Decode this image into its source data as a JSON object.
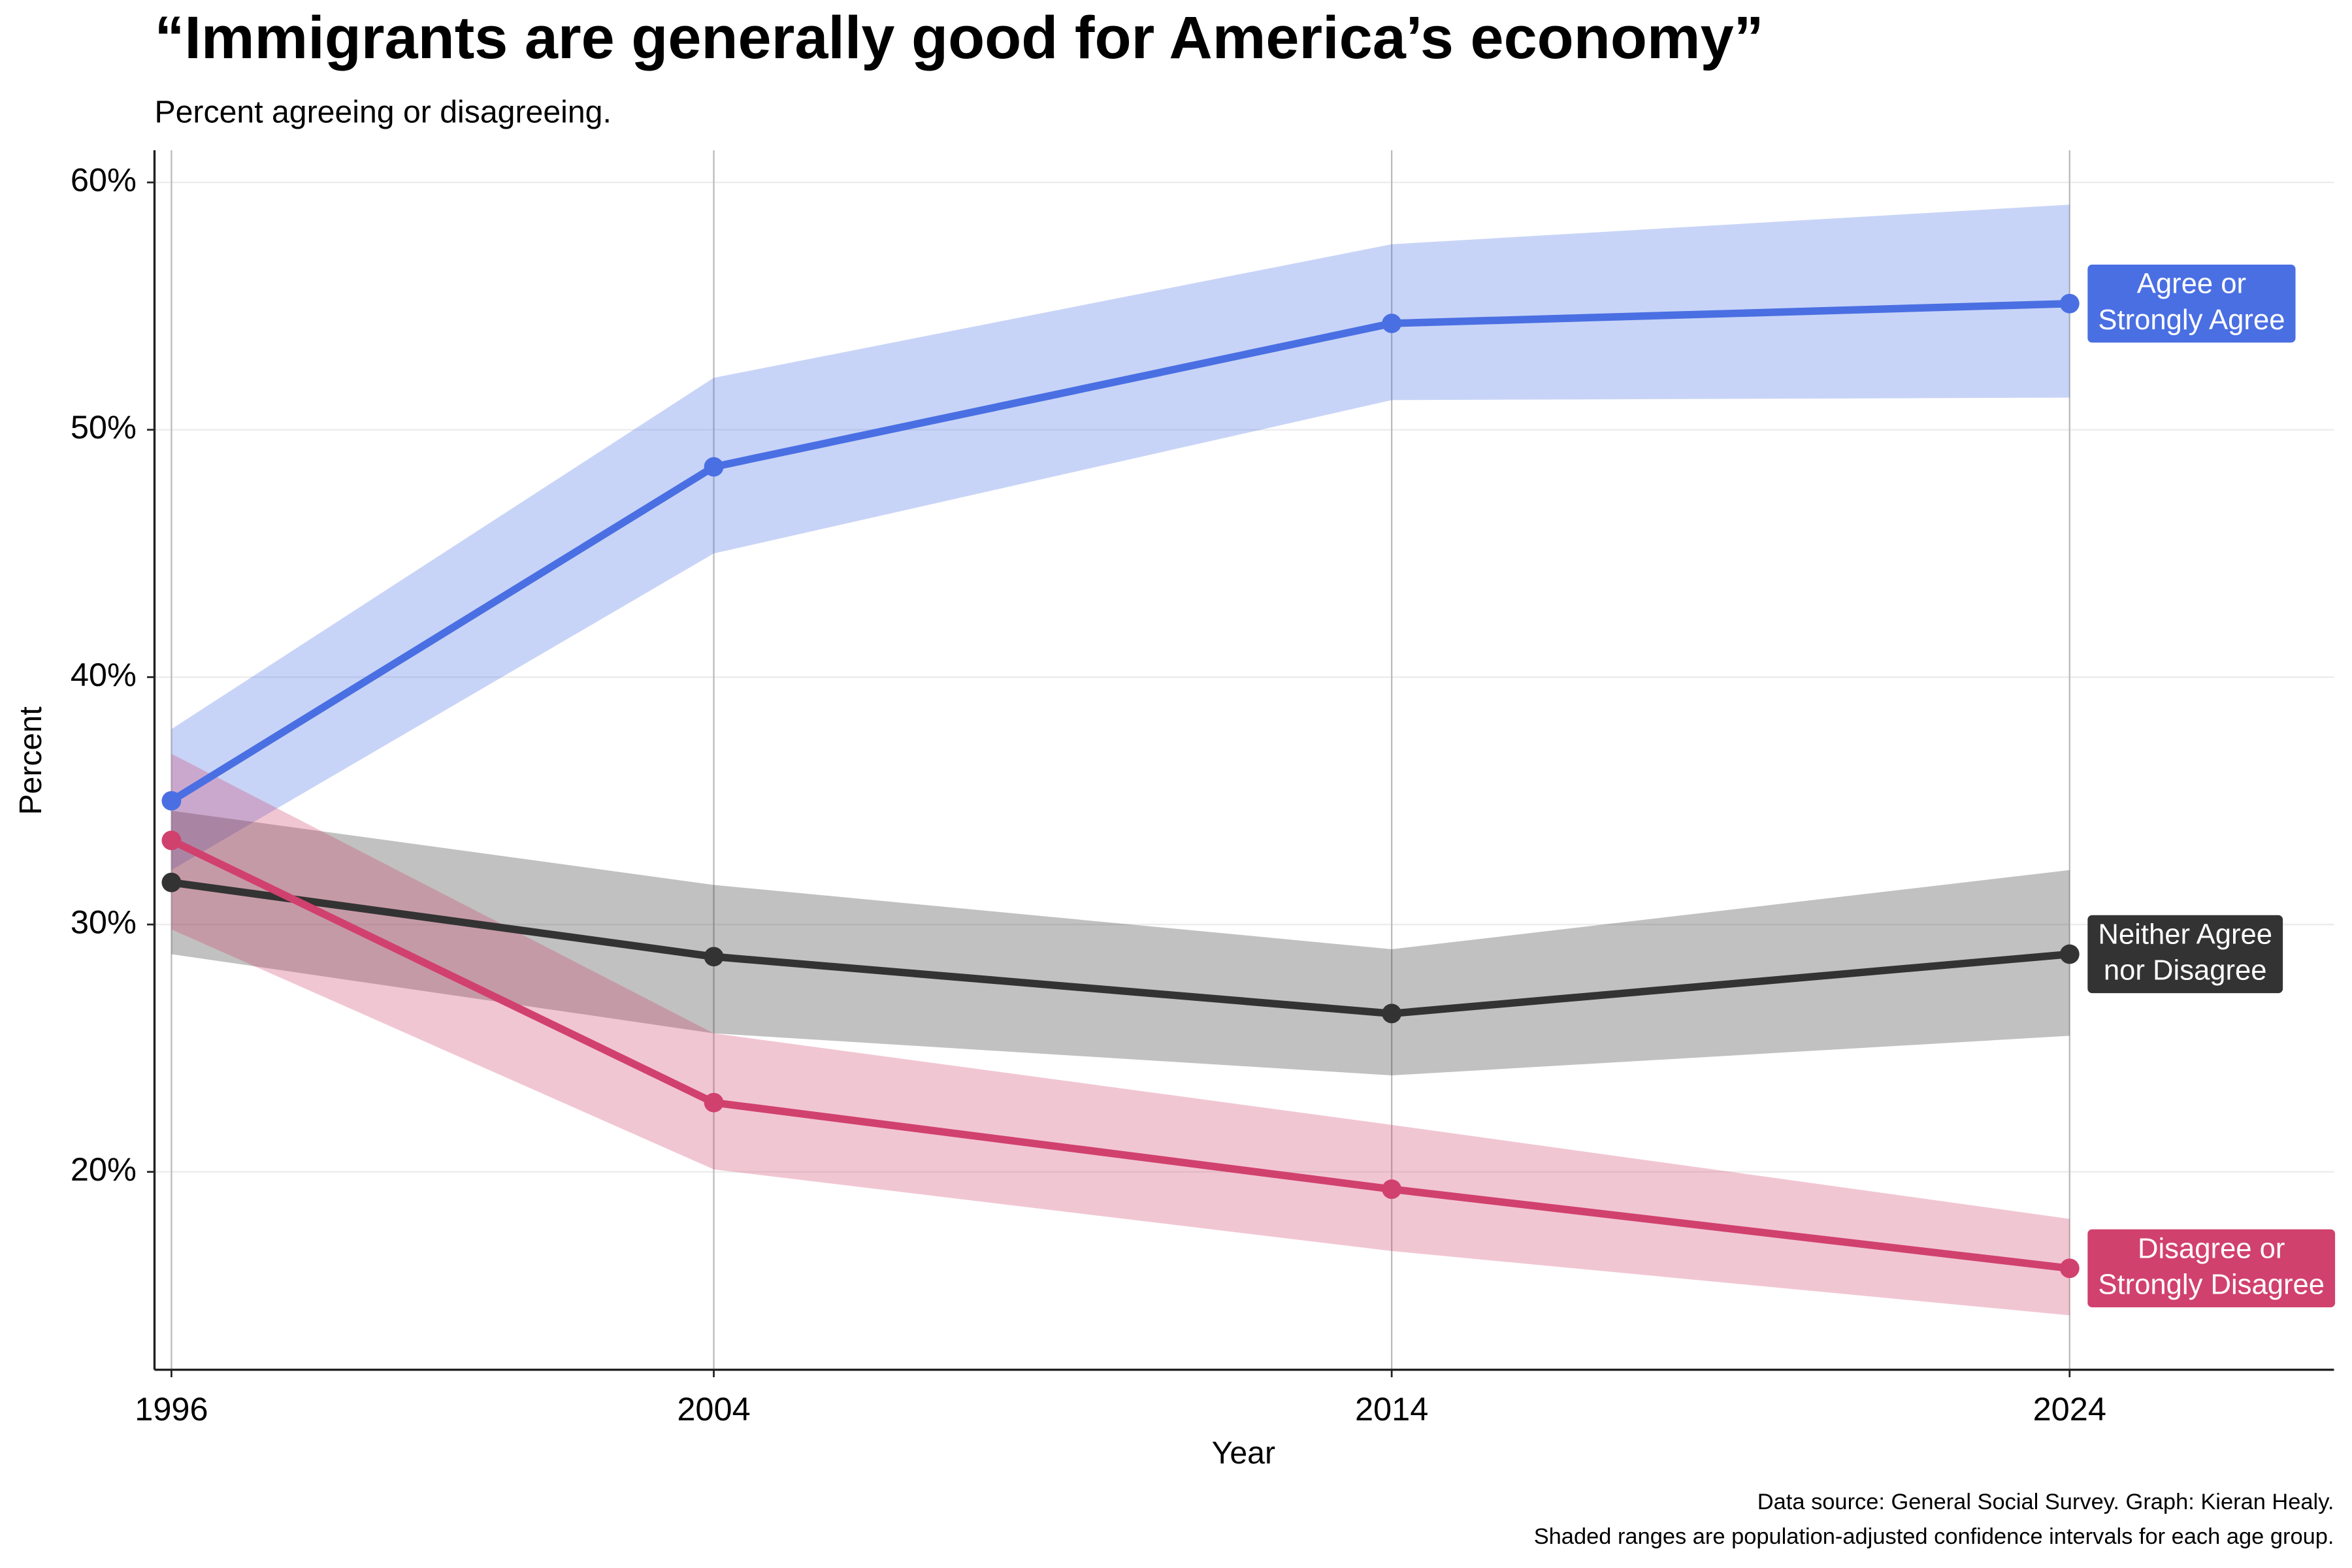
{
  "chart_data": {
    "type": "line",
    "title": "“Immigrants are generally good for America’s economy”",
    "subtitle": "Percent agreeing or disagreeing.",
    "x_label": "Year",
    "y_label": "Percent",
    "caption": [
      "Data source: General Social Survey. Graph: Kieran Healy.",
      "Shaded ranges are population-adjusted confidence intervals for each age group."
    ],
    "x": [
      1996,
      2004,
      2014,
      2024
    ],
    "xlim": [
      1995.75,
      2027.9
    ],
    "xticks": [
      1996,
      2004,
      2014,
      2024
    ],
    "ylim": [
      12,
      61.3
    ],
    "yticks": [
      {
        "value": 20,
        "label": "20%"
      },
      {
        "value": 30,
        "label": "30%"
      },
      {
        "value": 40,
        "label": "40%"
      },
      {
        "value": 50,
        "label": "50%"
      },
      {
        "value": 60,
        "label": "60%"
      }
    ],
    "grid": true,
    "series": [
      {
        "name": [
          "Agree or",
          "Strongly Agree"
        ],
        "color": "#4a6fe3",
        "values": [
          35.0,
          48.5,
          54.3,
          55.1
        ],
        "lower": [
          32.2,
          45.0,
          51.2,
          51.3
        ],
        "upper": [
          37.9,
          52.1,
          57.5,
          59.1
        ]
      },
      {
        "name": [
          "Neither Agree",
          "nor Disagree"
        ],
        "color": "#333333",
        "values": [
          31.7,
          28.7,
          26.4,
          28.8
        ],
        "lower": [
          28.8,
          25.6,
          23.9,
          25.5
        ],
        "upper": [
          34.6,
          31.6,
          29.0,
          32.2
        ]
      },
      {
        "name": [
          "Disagree or",
          "Strongly Disagree"
        ],
        "color": "#d1416e",
        "values": [
          33.4,
          22.8,
          19.3,
          16.1
        ],
        "lower": [
          29.8,
          20.1,
          16.8,
          14.2
        ],
        "upper": [
          36.9,
          25.6,
          21.9,
          18.1
        ]
      }
    ]
  }
}
